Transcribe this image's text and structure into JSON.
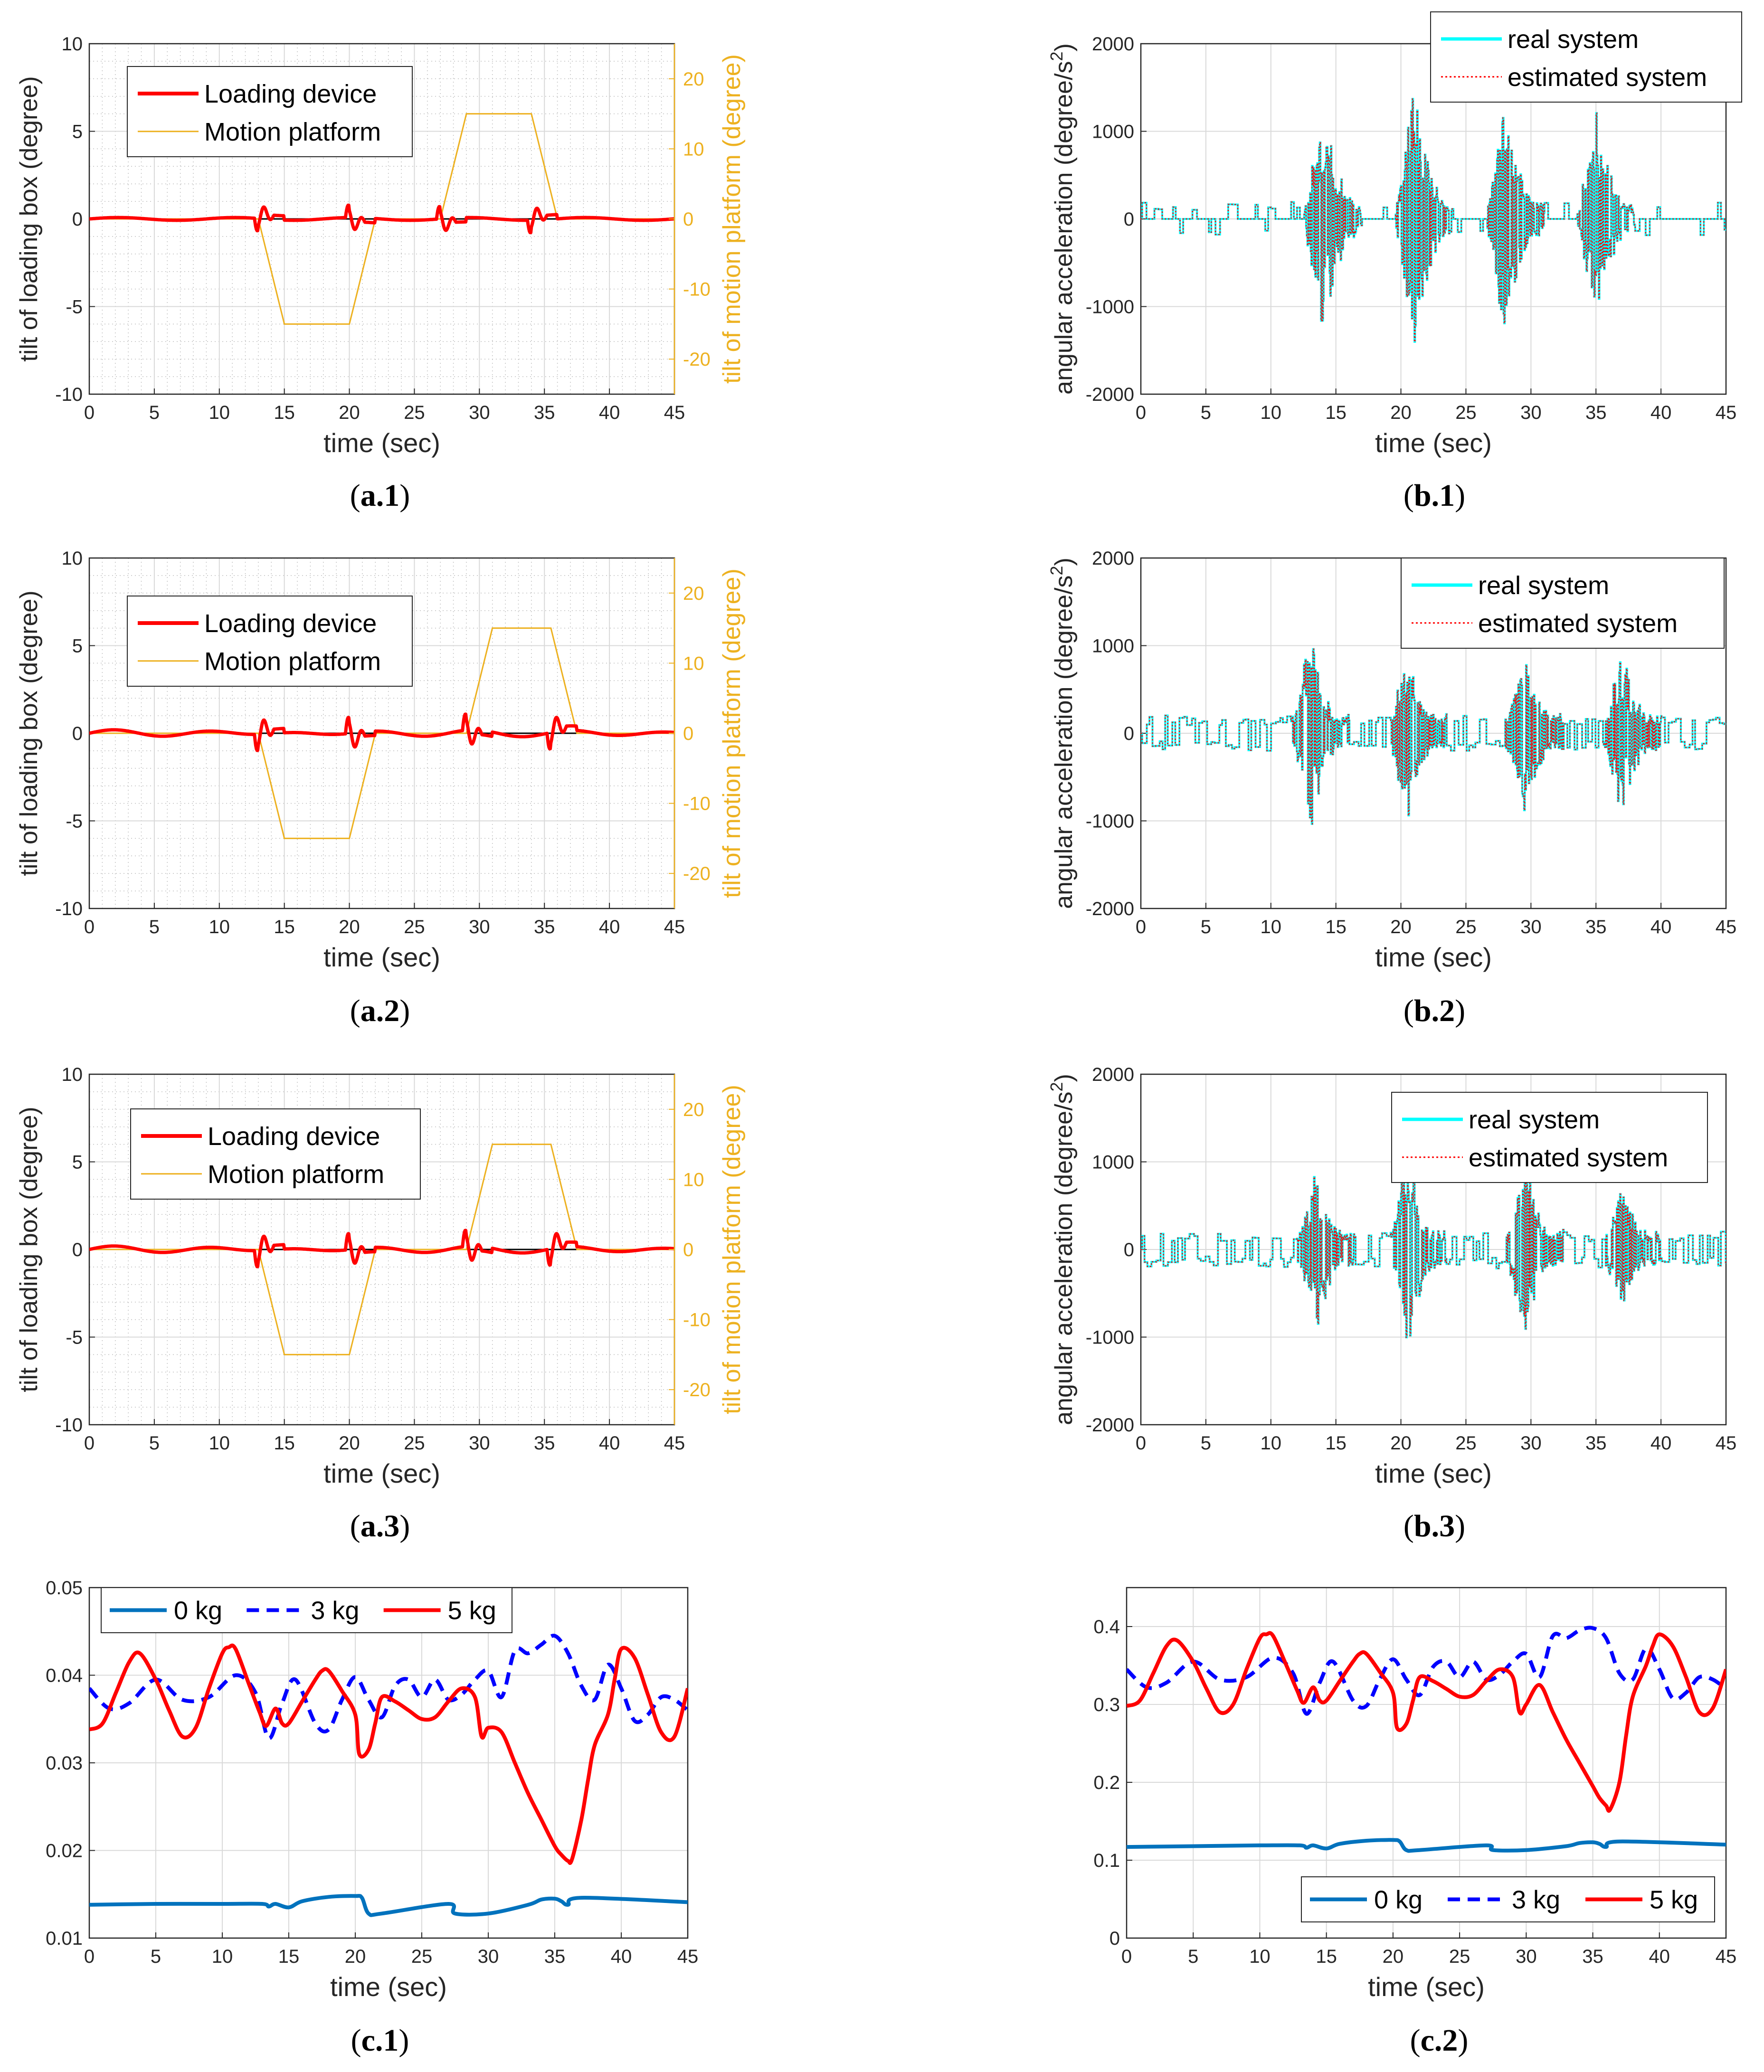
{
  "colors": {
    "loading": "#ff0000",
    "platform": "#edb120",
    "black": "#000000",
    "real": "#00ffff",
    "est": "#ff0000",
    "kg0": "#0072bd",
    "kg3": "#0000ff",
    "kg5": "#ff0000",
    "grid": "#d9d9d9"
  },
  "chart_data": [
    {
      "id": "a1",
      "type": "line",
      "caption": "(a.1)",
      "caption_bold": "a.1",
      "xlabel": "time (sec)",
      "ylabel": "tilt of loading box (degree)",
      "ylabel2": "tilt of motion platform (degree)",
      "xlim": [
        0,
        45
      ],
      "ylim": [
        -10,
        10
      ],
      "ylim2": [
        -25,
        25
      ],
      "xticks": [
        "0",
        "5",
        "10",
        "15",
        "20",
        "25",
        "30",
        "35",
        "40",
        "45"
      ],
      "yticks": [
        "-10",
        "-5",
        "0",
        "5",
        "10"
      ],
      "yticks2": [
        "-20",
        "-10",
        "0",
        "10",
        "20"
      ],
      "legend": [
        "Loading device",
        "Motion platform"
      ],
      "grid": true,
      "series": [
        {
          "name": "Loading device",
          "axis": "left"
        },
        {
          "name": "Motion platform",
          "axis": "right",
          "x": [
            0,
            13,
            15,
            20,
            22,
            27,
            29,
            34,
            36,
            45
          ],
          "y": [
            0,
            0,
            -15,
            -15,
            0,
            0,
            15,
            15,
            0,
            0
          ]
        }
      ]
    },
    {
      "id": "a2",
      "type": "line",
      "caption": "(a.2)",
      "caption_bold": "a.2",
      "xlabel": "time (sec)",
      "ylabel": "tilt of loading box (degree)",
      "ylabel2": "tilt of motion platform (degree)",
      "xlim": [
        0,
        45
      ],
      "ylim": [
        -10,
        10
      ],
      "ylim2": [
        -25,
        25
      ],
      "xticks": [
        "0",
        "5",
        "10",
        "15",
        "20",
        "25",
        "30",
        "35",
        "40",
        "45"
      ],
      "yticks": [
        "-10",
        "-5",
        "0",
        "5",
        "10"
      ],
      "yticks2": [
        "-20",
        "-10",
        "0",
        "10",
        "20"
      ],
      "legend": [
        "Loading device",
        "Motion platform"
      ],
      "grid": true,
      "series": [
        {
          "name": "Loading device",
          "axis": "left"
        },
        {
          "name": "Motion platform",
          "axis": "right",
          "x": [
            0,
            13,
            15,
            20,
            22,
            29,
            31,
            35.5,
            37.5,
            45
          ],
          "y": [
            0,
            0,
            -15,
            -15,
            0,
            0,
            15,
            15,
            0,
            0
          ]
        }
      ]
    },
    {
      "id": "a3",
      "type": "line",
      "caption": "(a.3)",
      "caption_bold": "a.3",
      "xlabel": "time (sec)",
      "ylabel": "tilt of loading box (degree)",
      "ylabel2": "tilt of motion platform (degree)",
      "xlim": [
        0,
        45
      ],
      "ylim": [
        -10,
        10
      ],
      "ylim2": [
        -25,
        25
      ],
      "xticks": [
        "0",
        "5",
        "10",
        "15",
        "20",
        "25",
        "30",
        "35",
        "40",
        "45"
      ],
      "yticks": [
        "-10",
        "-5",
        "0",
        "5",
        "10"
      ],
      "yticks2": [
        "-20",
        "-10",
        "0",
        "10",
        "20"
      ],
      "legend": [
        "Loading device",
        "Motion platform"
      ],
      "grid": true,
      "series": [
        {
          "name": "Loading device",
          "axis": "left"
        },
        {
          "name": "Motion platform",
          "axis": "right",
          "x": [
            0,
            13,
            15,
            20,
            22,
            29,
            31,
            35.5,
            37.5,
            45
          ],
          "y": [
            0,
            0,
            -15,
            -15,
            0,
            0,
            15,
            15,
            0,
            0
          ]
        }
      ]
    },
    {
      "id": "b1",
      "type": "line",
      "caption": "(b.1)",
      "caption_bold": "b.1",
      "xlabel": "time (sec)",
      "ylabel": "angular acceleration (degree/s",
      "ylabel_sup": "2",
      "ylabel_end": ")",
      "xlim": [
        0,
        45
      ],
      "ylim": [
        -2000,
        2000
      ],
      "xticks": [
        "0",
        "5",
        "10",
        "15",
        "20",
        "25",
        "30",
        "35",
        "40",
        "45"
      ],
      "yticks": [
        "-2000",
        "-1000",
        "0",
        "1000",
        "2000"
      ],
      "legend": [
        "real system",
        "estimated system"
      ],
      "grid": true,
      "bursts": [
        {
          "center": 14,
          "peak_pos": 1100,
          "peak_neg": -1500
        },
        {
          "center": 21,
          "peak_pos": 1600,
          "peak_neg": -1500
        },
        {
          "center": 28,
          "peak_pos": 1300,
          "peak_neg": -1400
        },
        {
          "center": 35,
          "peak_pos": 1000,
          "peak_neg": -1300
        }
      ]
    },
    {
      "id": "b2",
      "type": "line",
      "caption": "(b.2)",
      "caption_bold": "b.2",
      "xlabel": "time (sec)",
      "ylabel": "angular acceleration (degree/s",
      "ylabel_sup": "2",
      "ylabel_end": ")",
      "xlim": [
        0,
        45
      ],
      "ylim": [
        -2000,
        2000
      ],
      "xticks": [
        "0",
        "5",
        "10",
        "15",
        "20",
        "25",
        "30",
        "35",
        "40",
        "45"
      ],
      "yticks": [
        "-2000",
        "-1000",
        "0",
        "1000",
        "2000"
      ],
      "legend": [
        "real system",
        "estimated system"
      ],
      "grid": true,
      "bursts": [
        {
          "center": 13,
          "peak_pos": 1200,
          "peak_neg": -900
        },
        {
          "center": 20.5,
          "peak_pos": 1100,
          "peak_neg": -900
        },
        {
          "center": 29.5,
          "peak_pos": 900,
          "peak_neg": -1000
        },
        {
          "center": 37,
          "peak_pos": 700,
          "peak_neg": -1000
        }
      ]
    },
    {
      "id": "b3",
      "type": "line",
      "caption": "(b.3)",
      "caption_bold": "b.3",
      "xlabel": "time (sec)",
      "ylabel": "angular acceleration (degree/s",
      "ylabel_sup": "2",
      "ylabel_end": ")",
      "xlim": [
        0,
        45
      ],
      "ylim": [
        -2000,
        2000
      ],
      "xticks": [
        "0",
        "5",
        "10",
        "15",
        "20",
        "25",
        "30",
        "35",
        "40",
        "45"
      ],
      "yticks": [
        "-2000",
        "-1000",
        "0",
        "1000",
        "2000"
      ],
      "legend": [
        "real system",
        "estimated system"
      ],
      "grid": true,
      "bursts": [
        {
          "center": 13.5,
          "peak_pos": 1000,
          "peak_neg": -800
        },
        {
          "center": 20.5,
          "peak_pos": 900,
          "peak_neg": -1200
        },
        {
          "center": 29.5,
          "peak_pos": 900,
          "peak_neg": -1100
        },
        {
          "center": 37,
          "peak_pos": 800,
          "peak_neg": -700
        }
      ]
    },
    {
      "id": "c1",
      "type": "line",
      "caption": "(c.1)",
      "caption_bold": "c.1",
      "xlabel": "time (sec)",
      "ylabel": "",
      "xlim": [
        0,
        45
      ],
      "ylim": [
        0.01,
        0.05
      ],
      "xticks": [
        "0",
        "5",
        "10",
        "15",
        "20",
        "25",
        "30",
        "35",
        "40",
        "45"
      ],
      "yticks": [
        "0.01",
        "0.02",
        "0.03",
        "0.04",
        "0.05"
      ],
      "legend": [
        "0 kg",
        "3 kg",
        "5 kg"
      ],
      "grid": true,
      "series": [
        {
          "name": "0 kg",
          "x": [
            0,
            5,
            10,
            13,
            13.5,
            14,
            15,
            16,
            18,
            20,
            20.5,
            21,
            22,
            27,
            27.5,
            30,
            33,
            34,
            35,
            35.5,
            36,
            37,
            45
          ],
          "y": [
            0.0138,
            0.0139,
            0.0139,
            0.0139,
            0.0136,
            0.0139,
            0.0135,
            0.0142,
            0.0147,
            0.0148,
            0.0146,
            0.0128,
            0.0128,
            0.0139,
            0.0128,
            0.0128,
            0.0138,
            0.0144,
            0.0145,
            0.0142,
            0.0138,
            0.0146,
            0.0141
          ]
        },
        {
          "name": "3 kg",
          "x": [
            0,
            1.5,
            3,
            5,
            7,
            9,
            11,
            12.5,
            13.5,
            14.5,
            15.5,
            17,
            18,
            19,
            20,
            21,
            22,
            23,
            24,
            25,
            26,
            27,
            28,
            29,
            30,
            31,
            32,
            33,
            34,
            35,
            36,
            37,
            38,
            39,
            40,
            41,
            42,
            43,
            44,
            45
          ],
          "y": [
            0.0385,
            0.0362,
            0.0368,
            0.0395,
            0.0372,
            0.0375,
            0.04,
            0.038,
            0.0328,
            0.0368,
            0.0395,
            0.0345,
            0.0338,
            0.0372,
            0.0398,
            0.0372,
            0.0352,
            0.0388,
            0.0395,
            0.0375,
            0.0395,
            0.0372,
            0.0378,
            0.0395,
            0.0405,
            0.0375,
            0.0428,
            0.0425,
            0.0435,
            0.0445,
            0.0425,
            0.0388,
            0.0372,
            0.0412,
            0.0385,
            0.0348,
            0.0355,
            0.0375,
            0.0372,
            0.036
          ]
        },
        {
          "name": "5 kg",
          "x": [
            0,
            1,
            2,
            3,
            3.8,
            5,
            6,
            7,
            8,
            9,
            10,
            10.5,
            11,
            12,
            12.8,
            13.3,
            14,
            14.5,
            15,
            16,
            17,
            17.5,
            18,
            19,
            20,
            20.3,
            21,
            21.5,
            22,
            23,
            24,
            25,
            26,
            27,
            28,
            29,
            29.5,
            30,
            31,
            32,
            33,
            34,
            35,
            35.5,
            36,
            36.3,
            37,
            37.5,
            38,
            39,
            39.5,
            40,
            41,
            42,
            43,
            44,
            45
          ],
          "y": [
            0.0338,
            0.0345,
            0.038,
            0.0415,
            0.0425,
            0.0395,
            0.036,
            0.033,
            0.034,
            0.0385,
            0.0425,
            0.0432,
            0.043,
            0.039,
            0.0358,
            0.0342,
            0.0362,
            0.0345,
            0.0345,
            0.037,
            0.0395,
            0.0405,
            0.0405,
            0.0382,
            0.0355,
            0.031,
            0.0315,
            0.0345,
            0.0375,
            0.037,
            0.036,
            0.035,
            0.0352,
            0.037,
            0.0385,
            0.0375,
            0.033,
            0.034,
            0.0335,
            0.03,
            0.0265,
            0.0235,
            0.0205,
            0.0195,
            0.0188,
            0.019,
            0.0235,
            0.028,
            0.032,
            0.0355,
            0.0395,
            0.043,
            0.042,
            0.0378,
            0.0335,
            0.033,
            0.0385
          ]
        }
      ]
    },
    {
      "id": "c2",
      "type": "line",
      "caption": "(c.2)",
      "caption_bold": "c.2",
      "xlabel": "time (sec)",
      "ylabel": "",
      "xlim": [
        0,
        45
      ],
      "ylim": [
        0,
        0.45
      ],
      "xticks": [
        "0",
        "5",
        "10",
        "15",
        "20",
        "25",
        "30",
        "35",
        "40",
        "45"
      ],
      "yticks": [
        "0",
        "0.1",
        "0.2",
        "0.3",
        "0.4"
      ],
      "legend": [
        "0 kg",
        "3 kg",
        "5 kg"
      ],
      "grid": true,
      "series": [
        {
          "name": "0 kg",
          "x": [
            0,
            5,
            10,
            13,
            13.5,
            14,
            15,
            16,
            18,
            20,
            20.5,
            21,
            22,
            27,
            27.5,
            30,
            33,
            34,
            35,
            35.5,
            36,
            37,
            45
          ],
          "y": [
            0.117,
            0.118,
            0.119,
            0.119,
            0.116,
            0.119,
            0.115,
            0.121,
            0.125,
            0.126,
            0.124,
            0.113,
            0.113,
            0.119,
            0.113,
            0.113,
            0.118,
            0.122,
            0.123,
            0.121,
            0.117,
            0.124,
            0.12
          ]
        },
        {
          "name": "3 kg",
          "x": [
            0,
            1.5,
            3,
            5,
            7,
            9,
            11,
            12.5,
            13.5,
            14.5,
            15.5,
            17,
            18,
            19,
            20,
            21,
            22,
            23,
            24,
            25,
            26,
            27,
            28,
            29,
            30,
            31,
            32,
            33,
            34,
            35,
            36,
            37,
            38,
            39,
            40,
            41,
            42,
            43,
            44,
            45
          ],
          "y": [
            0.345,
            0.322,
            0.328,
            0.355,
            0.332,
            0.335,
            0.36,
            0.34,
            0.288,
            0.328,
            0.355,
            0.305,
            0.298,
            0.332,
            0.358,
            0.332,
            0.312,
            0.348,
            0.355,
            0.335,
            0.355,
            0.332,
            0.338,
            0.355,
            0.365,
            0.335,
            0.388,
            0.385,
            0.395,
            0.398,
            0.385,
            0.34,
            0.332,
            0.372,
            0.345,
            0.308,
            0.315,
            0.335,
            0.332,
            0.32
          ]
        },
        {
          "name": "5 kg",
          "x": [
            0,
            1,
            2,
            3,
            3.8,
            5,
            6,
            7,
            8,
            9,
            10,
            10.5,
            11,
            12,
            12.8,
            13.3,
            14,
            14.5,
            15,
            16,
            17,
            17.5,
            18,
            19,
            20,
            20.3,
            21,
            21.5,
            22,
            23,
            24,
            25,
            26,
            27,
            28,
            29,
            29.5,
            30,
            31,
            32,
            33,
            34,
            35,
            35.5,
            36,
            36.3,
            37,
            37.5,
            38,
            39,
            39.5,
            40,
            41,
            42,
            43,
            44,
            45
          ],
          "y": [
            0.298,
            0.305,
            0.34,
            0.375,
            0.382,
            0.355,
            0.32,
            0.29,
            0.3,
            0.345,
            0.385,
            0.39,
            0.388,
            0.35,
            0.318,
            0.302,
            0.322,
            0.305,
            0.305,
            0.33,
            0.355,
            0.365,
            0.365,
            0.342,
            0.315,
            0.27,
            0.275,
            0.305,
            0.335,
            0.33,
            0.32,
            0.31,
            0.312,
            0.33,
            0.345,
            0.335,
            0.29,
            0.3,
            0.325,
            0.29,
            0.255,
            0.225,
            0.195,
            0.18,
            0.17,
            0.165,
            0.2,
            0.26,
            0.31,
            0.35,
            0.375,
            0.39,
            0.375,
            0.335,
            0.29,
            0.295,
            0.345
          ]
        }
      ]
    }
  ]
}
